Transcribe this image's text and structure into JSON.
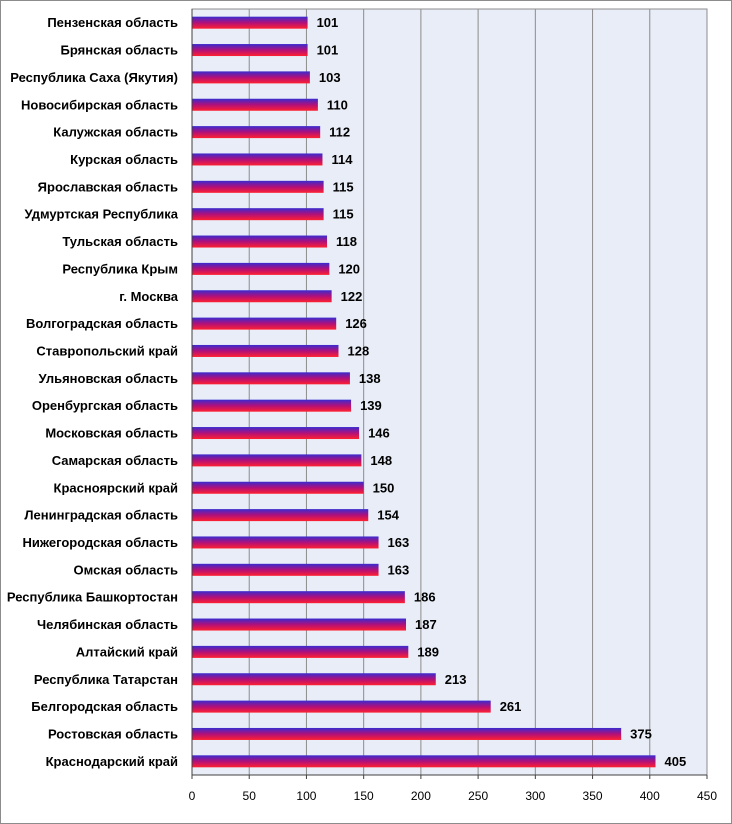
{
  "chart_data": {
    "type": "bar",
    "orientation": "horizontal",
    "categories": [
      "Пензенская область",
      "Брянская область",
      "Республика Саха (Якутия)",
      "Новосибирская область",
      "Калужская область",
      "Курская область",
      "Ярославская область",
      "Удмуртская Республика",
      "Тульская область",
      "Республика Крым",
      "г. Москва",
      "Волгоградская область",
      "Ставропольский край",
      "Ульяновская область",
      "Оренбургская область",
      "Московская область",
      "Самарская область",
      "Красноярский край",
      "Ленинградская область",
      "Нижегородская область",
      "Омская область",
      "Республика Башкортостан",
      "Челябинская область",
      "Алтайский край",
      "Республика Татарстан",
      "Белгородская область",
      "Ростовская область",
      "Краснодарский край"
    ],
    "values": [
      101,
      101,
      103,
      110,
      112,
      114,
      115,
      115,
      118,
      120,
      122,
      126,
      128,
      138,
      139,
      146,
      148,
      150,
      154,
      163,
      163,
      186,
      187,
      189,
      213,
      261,
      375,
      405
    ],
    "xlim": [
      0,
      450
    ],
    "xticks": [
      0,
      50,
      100,
      150,
      200,
      250,
      300,
      350,
      400,
      450
    ],
    "xtick_labels": [
      "0",
      "50",
      "100",
      "150",
      "200",
      "250",
      "300",
      "350",
      "400",
      "450"
    ],
    "grid": true,
    "legend": "none",
    "title": "",
    "xlabel": "",
    "ylabel": "",
    "colors": {
      "bar_top": "#3a2bd0",
      "bar_mid": "#b0107a",
      "bar_bottom": "#ff2030",
      "plot_bg": "#e8edf7",
      "grid": "#8c8c8c",
      "frame": "#8c8c8c"
    }
  }
}
